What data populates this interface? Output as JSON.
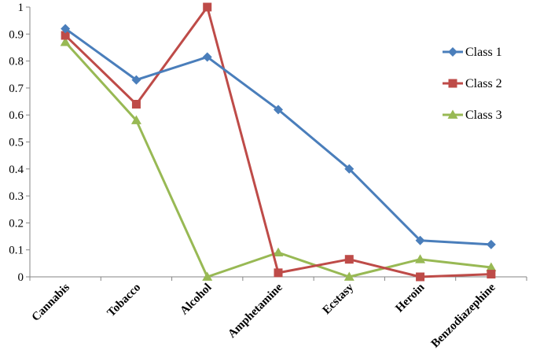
{
  "chart_data": {
    "type": "line",
    "title": "",
    "xlabel": "",
    "ylabel": "",
    "ylim": [
      0,
      1
    ],
    "yticks": [
      "0",
      "0.1",
      "0.2",
      "0.3",
      "0.4",
      "0.5",
      "0.6",
      "0.7",
      "0.8",
      "0.9",
      "1"
    ],
    "grid": false,
    "legend_position": "right",
    "categories": [
      "Cannabis",
      "Tobacco",
      "Alcohol",
      "Amphetamine",
      "Ecstasy",
      "Heroin",
      "Benzodiazephine"
    ],
    "series": [
      {
        "name": "Class 1",
        "color": "#4a7ebb",
        "marker": "diamond",
        "values": [
          0.92,
          0.73,
          0.815,
          0.62,
          0.4,
          0.135,
          0.12
        ]
      },
      {
        "name": "Class 2",
        "color": "#be4b48",
        "marker": "square",
        "values": [
          0.895,
          0.64,
          1.0,
          0.015,
          0.065,
          0.0,
          0.01
        ]
      },
      {
        "name": "Class 3",
        "color": "#98b954",
        "marker": "triangle",
        "values": [
          0.87,
          0.58,
          0.0,
          0.09,
          0.0,
          0.065,
          0.035
        ]
      }
    ]
  }
}
